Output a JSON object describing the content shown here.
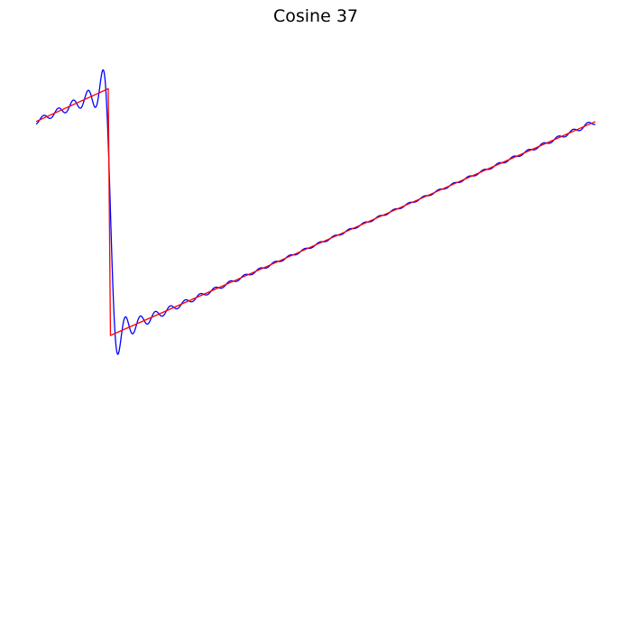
{
  "chart_data": {
    "type": "line",
    "title": "Cosine 37",
    "xlabel": "",
    "ylabel": "",
    "axes_visible": false,
    "grid": false,
    "legend": "none",
    "xlim": [
      0,
      1
    ],
    "ylim": [
      -1,
      1
    ],
    "series": [
      {
        "color": "#0000ff",
        "description_kind": "fourier_approximation",
        "harmonics": 37,
        "samples": 2000
      },
      {
        "color": "#ff0000",
        "description_kind": "target_sawtooth",
        "discontinuity_x": 0.133
      }
    ]
  }
}
